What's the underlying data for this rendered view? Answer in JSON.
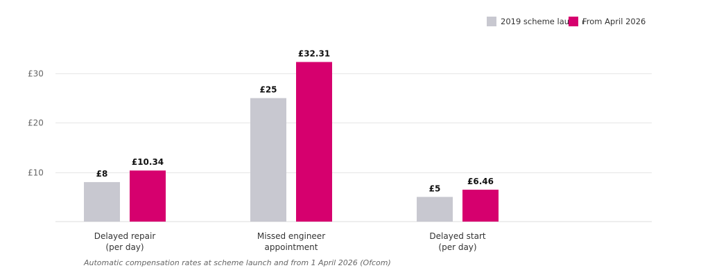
{
  "chart_data": {
    "type": "bar",
    "categories": [
      [
        "Delayed repair",
        "(per day)"
      ],
      [
        "Missed engineer",
        "appointment"
      ],
      [
        "Delayed start",
        "(per day)"
      ]
    ],
    "series": [
      {
        "name": "2019 scheme launch",
        "color": "#c8c8d0",
        "values": [
          8,
          25,
          5
        ],
        "labels": [
          "£8",
          "£25",
          "£5"
        ]
      },
      {
        "name": "From April 2026",
        "color": "#d6006e",
        "values": [
          10.34,
          32.31,
          6.46
        ],
        "labels": [
          "£10.34",
          "£32.31",
          "£6.46"
        ]
      }
    ],
    "ylim": [
      0,
      35
    ],
    "yticks": [
      10,
      20,
      30
    ],
    "ytick_labels": [
      "£10",
      "£20",
      "£30"
    ],
    "grid": true,
    "legend_position": "top-right",
    "caption": "Automatic compensation rates at scheme launch and from 1 April 2026 (Ofcom)"
  }
}
